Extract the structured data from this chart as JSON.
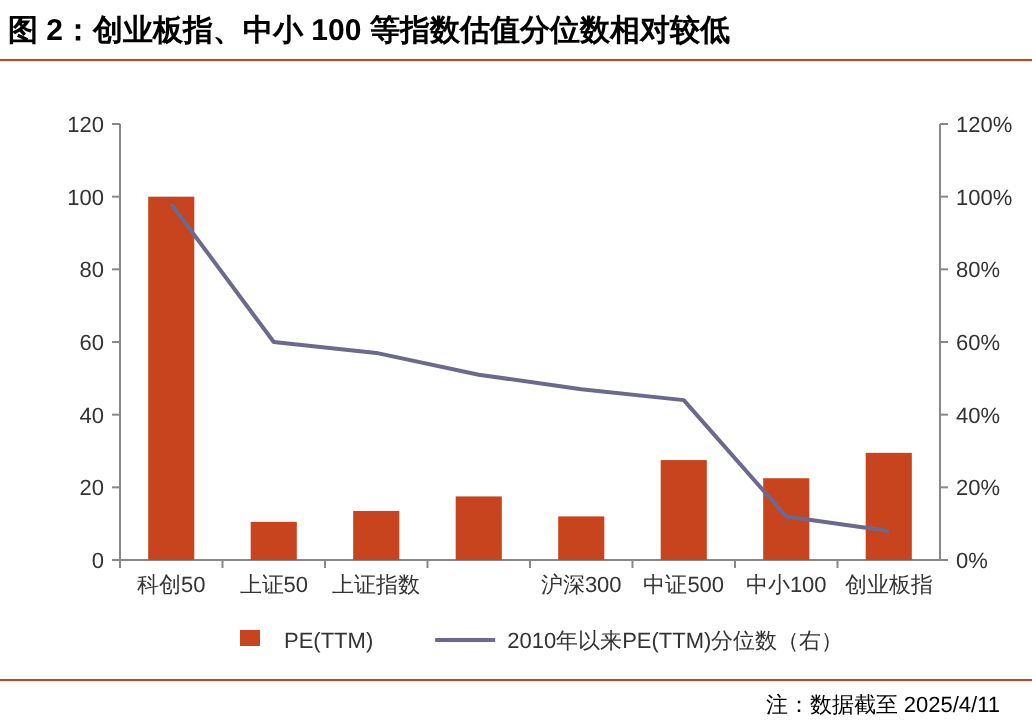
{
  "chart_data": {
    "type": "bar",
    "title": "图 2：创业板指、中小 100 等指数估值分位数相对较低",
    "categories": [
      "科创50",
      "上证50",
      "上证指数",
      null,
      "沪深300",
      "中证500",
      "中小100",
      "创业板指"
    ],
    "series": [
      {
        "name": "PE(TTM)",
        "color": "#c8441f",
        "values": [
          100,
          10.5,
          13.5,
          17.5,
          12,
          27.5,
          22.5,
          29.5
        ]
      },
      {
        "name": "2010年以来PE(TTM)分位数（右）",
        "type": "line",
        "axis": "y2",
        "color": "#6b6a8c",
        "values": [
          0.98,
          0.6,
          0.57,
          0.51,
          0.47,
          0.44,
          0.12,
          0.08
        ]
      }
    ],
    "ylim": [
      0,
      120
    ],
    "yticks": [
      0,
      20,
      40,
      60,
      80,
      100,
      120
    ],
    "y2lim": [
      0,
      1.2
    ],
    "y2ticks": [
      {
        "value": 0,
        "label": "0%"
      },
      {
        "value": 0.2,
        "label": "20%"
      },
      {
        "value": 0.4,
        "label": "40%"
      },
      {
        "value": 0.6,
        "label": "60%"
      },
      {
        "value": 0.8,
        "label": "80%"
      },
      {
        "value": 1,
        "label": "100%"
      },
      {
        "value": 1.2,
        "label": "120%"
      }
    ],
    "legend": "bottom",
    "grid": false,
    "annotations": [
      "注：数据截至 2025/4/11"
    ]
  }
}
